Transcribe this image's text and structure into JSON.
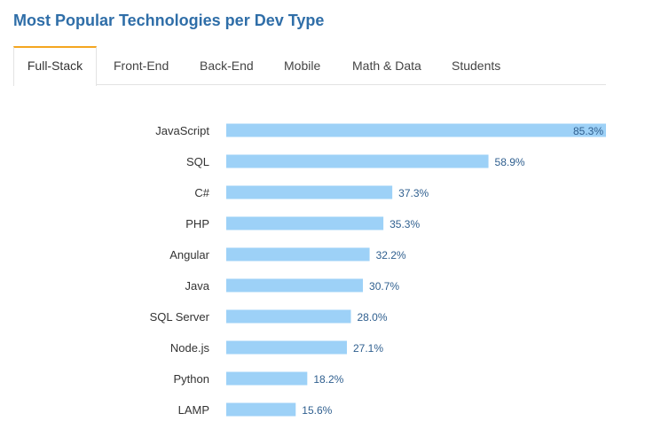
{
  "header": {
    "title": "Most Popular Technologies per Dev Type"
  },
  "tabs": [
    {
      "label": "Full-Stack",
      "active": true
    },
    {
      "label": "Front-End",
      "active": false
    },
    {
      "label": "Back-End",
      "active": false
    },
    {
      "label": "Mobile",
      "active": false
    },
    {
      "label": "Math & Data",
      "active": false
    },
    {
      "label": "Students",
      "active": false
    }
  ],
  "colors": {
    "bar": "#9dd1f7",
    "value_label": "#2f5f8f",
    "category_label": "#333333",
    "title": "#2f6ea8",
    "active_tab_accent": "#f4a620"
  },
  "chart_data": {
    "type": "bar",
    "orientation": "horizontal",
    "categories": [
      "JavaScript",
      "SQL",
      "C#",
      "PHP",
      "Angular",
      "Java",
      "SQL Server",
      "Node.js",
      "Python",
      "LAMP"
    ],
    "values": [
      85.3,
      58.9,
      37.3,
      35.3,
      32.2,
      30.7,
      28.0,
      27.1,
      18.2,
      15.6
    ],
    "value_labels": [
      "85.3%",
      "58.9%",
      "37.3%",
      "35.3%",
      "32.2%",
      "30.7%",
      "28.0%",
      "27.1%",
      "18.2%",
      "15.6%"
    ],
    "title": "Most Popular Technologies per Dev Type",
    "xlabel": "",
    "ylabel": "",
    "xlim": [
      0,
      85.3
    ]
  }
}
